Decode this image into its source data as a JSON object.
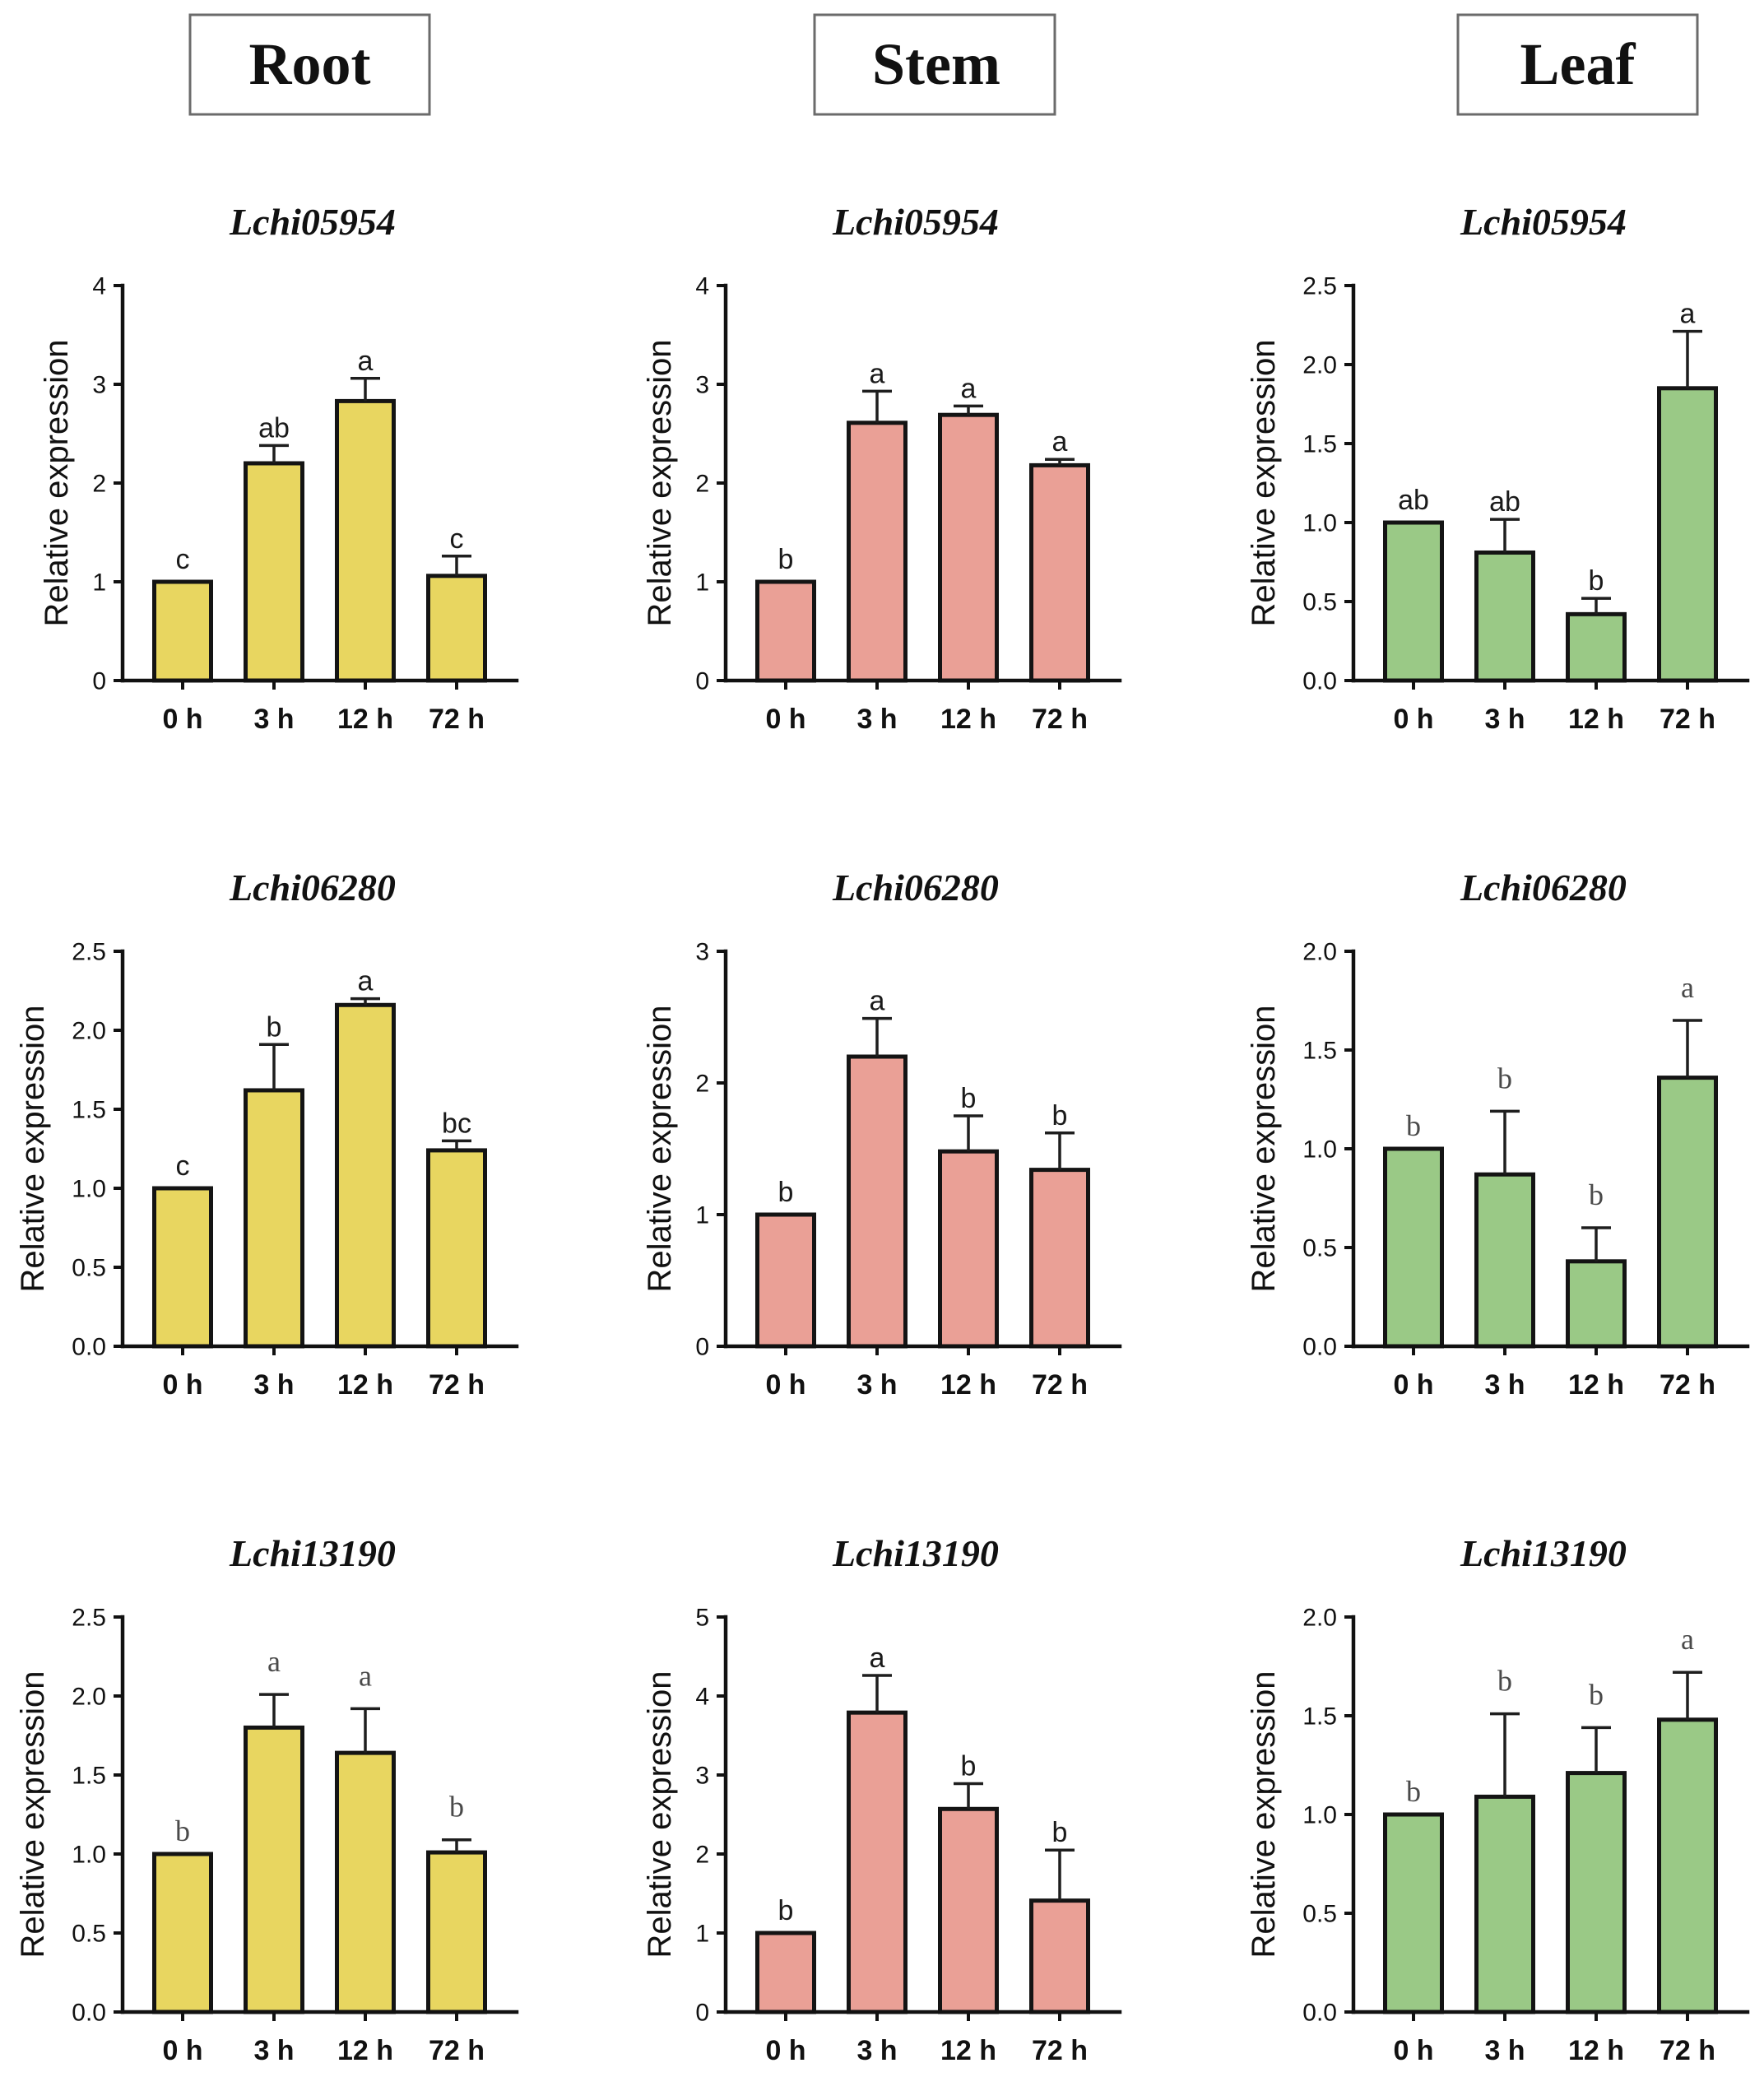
{
  "headers": {
    "columns": [
      "Root",
      "Stem",
      "Leaf"
    ]
  },
  "chart_data": [
    {
      "type": "bar",
      "title": "Lchi05954",
      "ylabel": "Relative expression",
      "categories": [
        "0 h",
        "3 h",
        "12 h",
        "72 h"
      ],
      "values": [
        1.0,
        2.2,
        2.83,
        1.06
      ],
      "errors": [
        0,
        0.18,
        0.23,
        0.2
      ],
      "letters": [
        "c",
        "ab",
        "a",
        "c"
      ],
      "ylim": [
        0,
        4
      ],
      "yticks": [
        "0",
        "1",
        "2",
        "3",
        "4"
      ],
      "color": "#E8D660"
    },
    {
      "type": "bar",
      "title": "Lchi05954",
      "ylabel": "Relative expression",
      "categories": [
        "0 h",
        "3 h",
        "12 h",
        "72 h"
      ],
      "values": [
        1.0,
        2.61,
        2.69,
        2.18
      ],
      "errors": [
        0,
        0.32,
        0.09,
        0.06
      ],
      "letters": [
        "b",
        "a",
        "a",
        "a"
      ],
      "ylim": [
        0,
        4
      ],
      "yticks": [
        "0",
        "1",
        "2",
        "3",
        "4"
      ],
      "color": "#EAA096"
    },
    {
      "type": "bar",
      "title": "Lchi05954",
      "ylabel": "Relative expression",
      "categories": [
        "0 h",
        "3 h",
        "12 h",
        "72 h"
      ],
      "values": [
        1.0,
        0.81,
        0.42,
        1.85
      ],
      "errors": [
        0,
        0.21,
        0.1,
        0.36
      ],
      "letters": [
        "ab",
        "ab",
        "b",
        "a"
      ],
      "ylim": [
        0,
        2.5
      ],
      "yticks": [
        "0.0",
        "0.5",
        "1.0",
        "1.5",
        "2.0",
        "2.5"
      ],
      "color": "#9AC986"
    },
    {
      "type": "bar",
      "title": "Lchi06280",
      "ylabel": "Relative expression",
      "categories": [
        "0 h",
        "3 h",
        "12 h",
        "72 h"
      ],
      "values": [
        1.0,
        1.62,
        2.16,
        1.24
      ],
      "errors": [
        0,
        0.29,
        0.04,
        0.06
      ],
      "letters": [
        "c",
        "b",
        "a",
        "bc"
      ],
      "ylim": [
        0,
        2.5
      ],
      "yticks": [
        "0.0",
        "0.5",
        "1.0",
        "1.5",
        "2.0",
        "2.5"
      ],
      "color": "#E8D660"
    },
    {
      "type": "bar",
      "title": "Lchi06280",
      "ylabel": "Relative expression",
      "categories": [
        "0 h",
        "3 h",
        "12 h",
        "72 h"
      ],
      "values": [
        1.0,
        2.2,
        1.48,
        1.34
      ],
      "errors": [
        0,
        0.29,
        0.27,
        0.28
      ],
      "letters": [
        "b",
        "a",
        "b",
        "b"
      ],
      "ylim": [
        0,
        3
      ],
      "yticks": [
        "0",
        "1",
        "2",
        "3"
      ],
      "color": "#EAA096"
    },
    {
      "type": "bar",
      "title": "Lchi06280",
      "ylabel": "Relative expression",
      "categories": [
        "0 h",
        "3 h",
        "12 h",
        "72 h"
      ],
      "values": [
        1.0,
        0.87,
        0.43,
        1.36
      ],
      "errors": [
        0,
        0.32,
        0.17,
        0.29
      ],
      "letters": [
        "b",
        "b",
        "b",
        "a"
      ],
      "ylim": [
        0,
        2
      ],
      "yticks": [
        "0.0",
        "0.5",
        "1.0",
        "1.5",
        "2.0"
      ],
      "color": "#9AC986"
    },
    {
      "type": "bar",
      "title": "Lchi13190",
      "ylabel": "Relative expression",
      "categories": [
        "0 h",
        "3 h",
        "12 h",
        "72 h"
      ],
      "values": [
        1.0,
        1.8,
        1.64,
        1.01
      ],
      "errors": [
        0,
        0.21,
        0.28,
        0.08
      ],
      "letters": [
        "b",
        "a",
        "a",
        "b"
      ],
      "ylim": [
        0,
        2.5
      ],
      "yticks": [
        "0.0",
        "0.5",
        "1.0",
        "1.5",
        "2.0",
        "2.5"
      ],
      "color": "#E8D660"
    },
    {
      "type": "bar",
      "title": "Lchi13190",
      "ylabel": "Relative expression",
      "categories": [
        "0 h",
        "3 h",
        "12 h",
        "72 h"
      ],
      "values": [
        1.0,
        3.79,
        2.57,
        1.41
      ],
      "errors": [
        0,
        0.47,
        0.32,
        0.64
      ],
      "letters": [
        "b",
        "a",
        "b",
        "b"
      ],
      "ylim": [
        0,
        5
      ],
      "yticks": [
        "0",
        "1",
        "2",
        "3",
        "4",
        "5"
      ],
      "color": "#EAA096"
    },
    {
      "type": "bar",
      "title": "Lchi13190",
      "ylabel": "Relative expression",
      "categories": [
        "0 h",
        "3 h",
        "12 h",
        "72 h"
      ],
      "values": [
        1.0,
        1.09,
        1.21,
        1.48
      ],
      "errors": [
        0,
        0.42,
        0.23,
        0.24
      ],
      "letters": [
        "b",
        "b",
        "b",
        "a"
      ],
      "ylim": [
        0,
        2
      ],
      "yticks": [
        "0.0",
        "0.5",
        "1.0",
        "1.5",
        "2.0"
      ],
      "color": "#9AC986"
    }
  ]
}
